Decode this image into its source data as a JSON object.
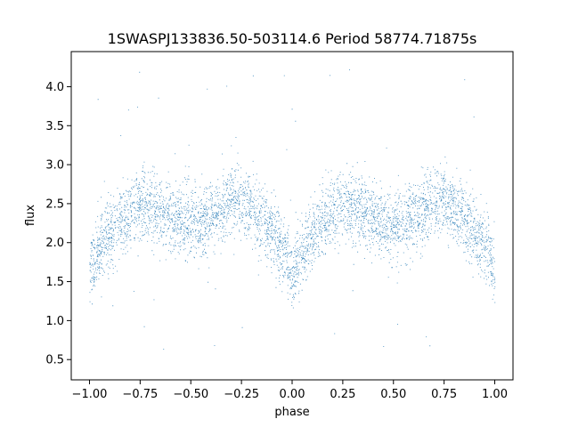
{
  "chart_data": {
    "type": "scatter",
    "title": "1SWASPJ133836.50-503114.6 Period 58774.71875s",
    "xlabel": "phase",
    "ylabel": "flux",
    "xlim": [
      -1.09,
      1.09
    ],
    "ylim": [
      0.24,
      4.45
    ],
    "xticks": [
      -1.0,
      -0.75,
      -0.5,
      -0.25,
      0.0,
      0.25,
      0.5,
      0.75,
      1.0
    ],
    "xtick_labels": [
      "−1.00",
      "−0.75",
      "−0.50",
      "−0.25",
      "0.00",
      "0.25",
      "0.50",
      "0.75",
      "1.00"
    ],
    "yticks": [
      0.5,
      1.0,
      1.5,
      2.0,
      2.5,
      3.0,
      3.5,
      4.0
    ],
    "ytick_labels": [
      "0.5",
      "1.0",
      "1.5",
      "2.0",
      "2.5",
      "3.0",
      "3.5",
      "4.0"
    ],
    "grid": false,
    "marker_color": "#1f77b4",
    "light_curve": {
      "phase_range": [
        -1.0,
        1.0
      ],
      "primary_minima": [
        {
          "phase": -1.0,
          "flux": 1.55
        },
        {
          "phase": 0.0,
          "flux": 1.45
        },
        {
          "phase": 1.0,
          "flux": 1.55
        }
      ],
      "maxima": [
        {
          "phase": -0.75,
          "flux": 2.5
        },
        {
          "phase": -0.25,
          "flux": 2.55
        },
        {
          "phase": 0.25,
          "flux": 2.5
        },
        {
          "phase": 0.75,
          "flux": 2.55
        }
      ],
      "secondary_minima": [
        {
          "phase": -0.5,
          "flux": 2.25
        },
        {
          "phase": 0.5,
          "flux": 2.2
        }
      ],
      "point_count": 16000,
      "scatter_sigma": 0.22,
      "outlier_range": [
        0.4,
        4.25
      ]
    }
  }
}
